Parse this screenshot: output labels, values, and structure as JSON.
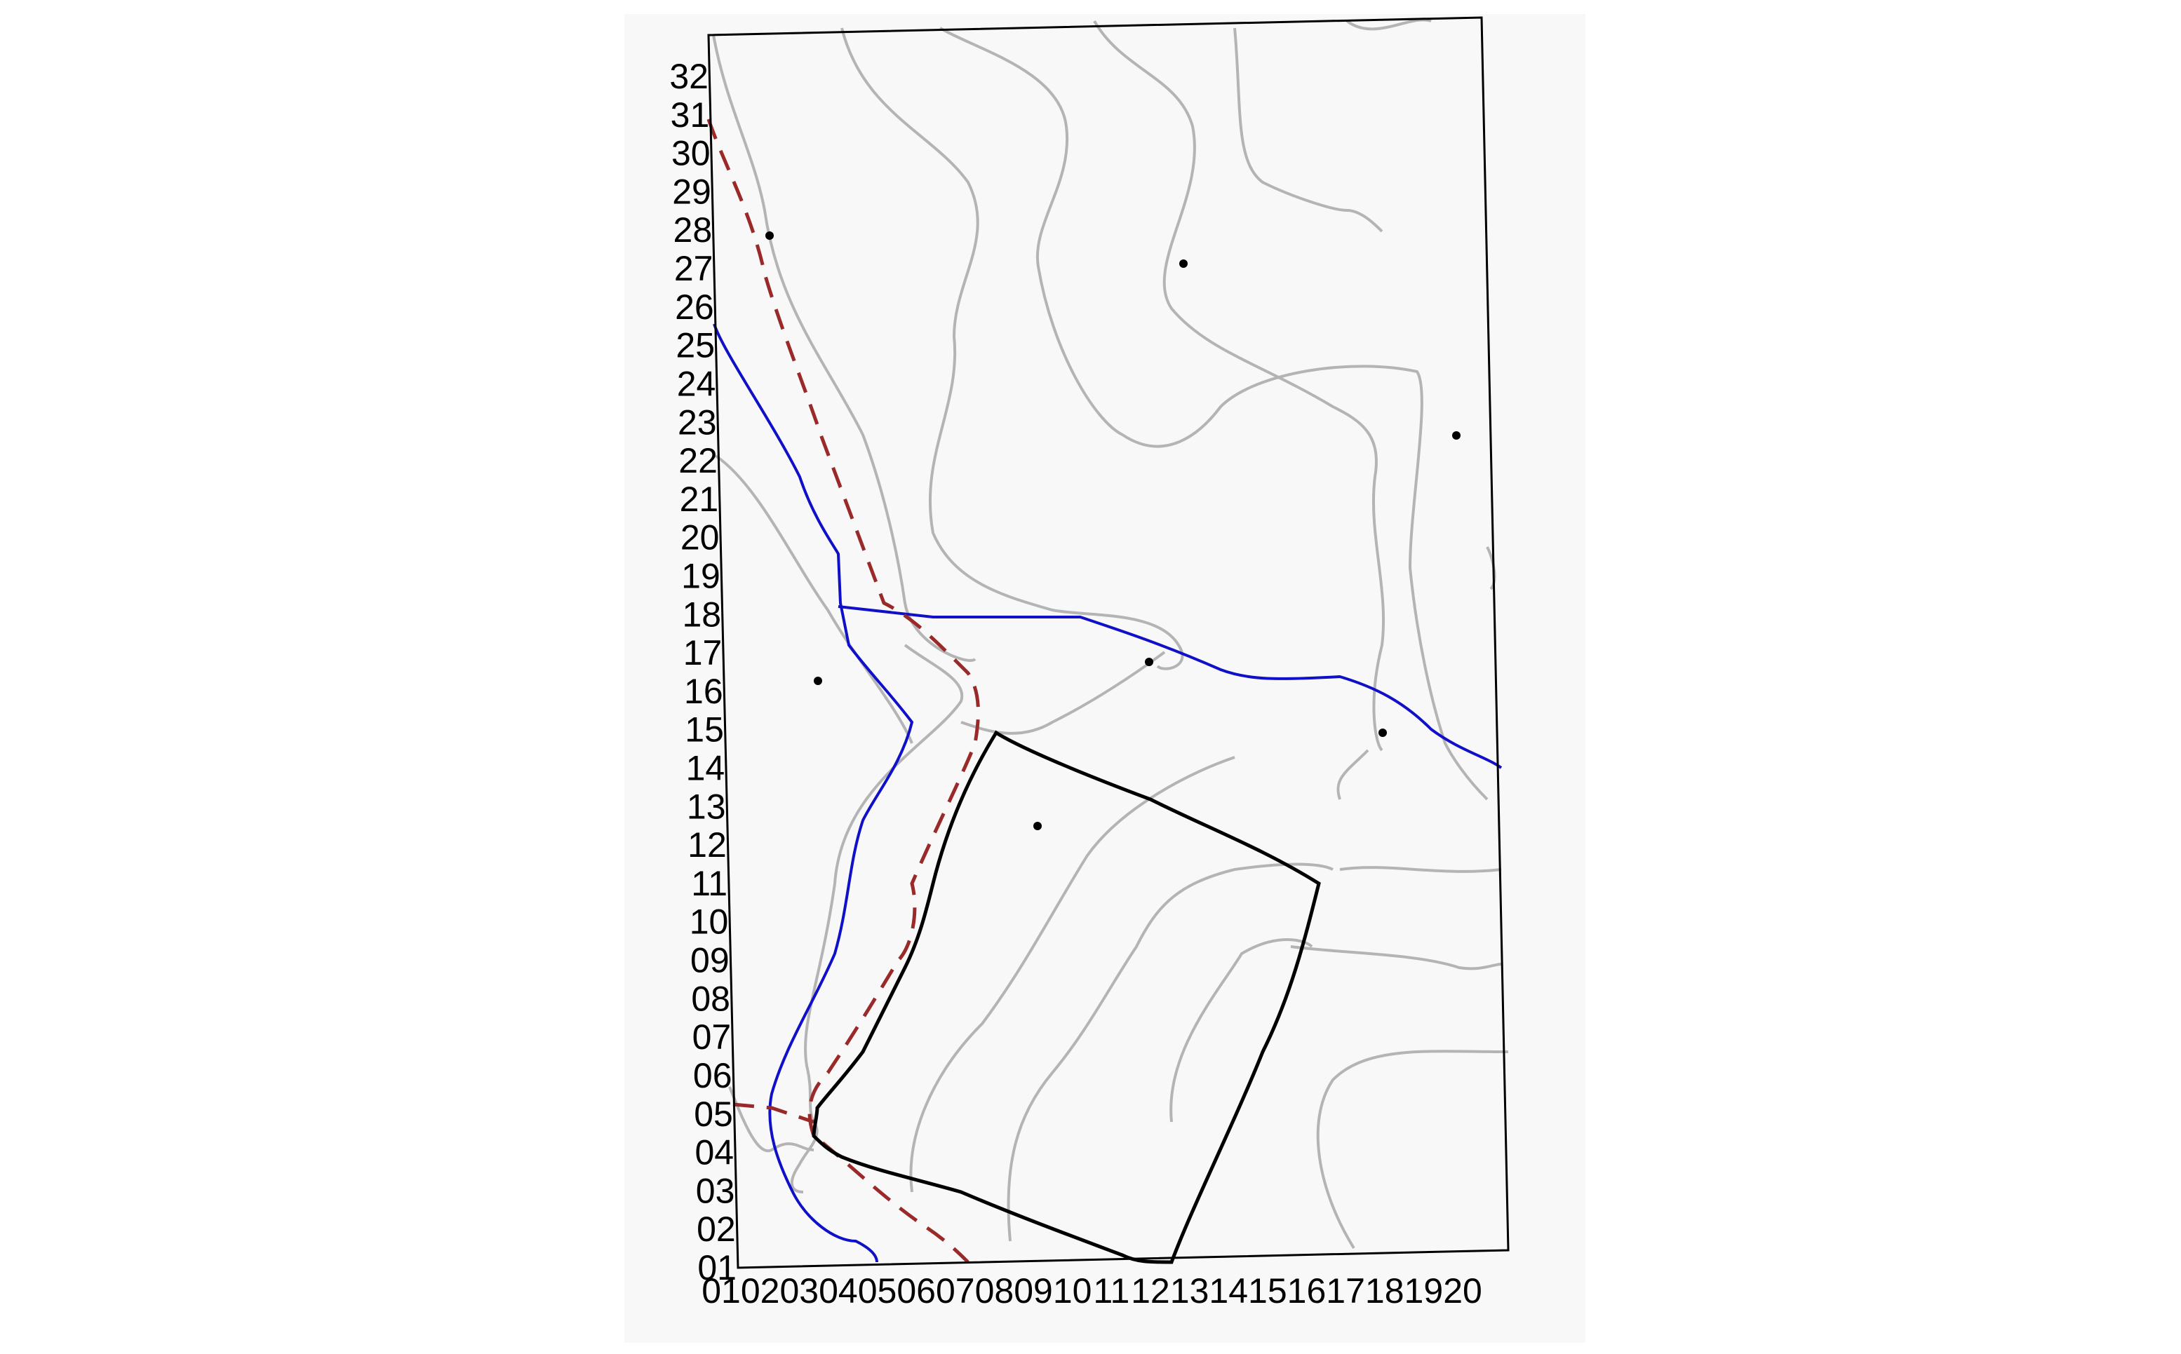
{
  "map": {
    "background": "#f8f8f8",
    "frame_color": "#000000",
    "colors": {
      "contour": "#b4b4b4",
      "river": "#1010c8",
      "boundary": "#9a2a2a",
      "plot": "#000000",
      "point": "#000000"
    },
    "x_ticks": [
      "01",
      "02",
      "03",
      "04",
      "05",
      "06",
      "07",
      "08",
      "09",
      "10",
      "11",
      "12",
      "13",
      "14",
      "15",
      "16",
      "17",
      "18",
      "19",
      "20"
    ],
    "y_ticks": [
      "01",
      "02",
      "03",
      "04",
      "05",
      "06",
      "07",
      "08",
      "09",
      "10",
      "11",
      "12",
      "13",
      "14",
      "15",
      "16",
      "17",
      "18",
      "19",
      "20",
      "21",
      "22",
      "23",
      "24",
      "25",
      "26",
      "27",
      "28",
      "29",
      "30",
      "31",
      "32"
    ]
  }
}
